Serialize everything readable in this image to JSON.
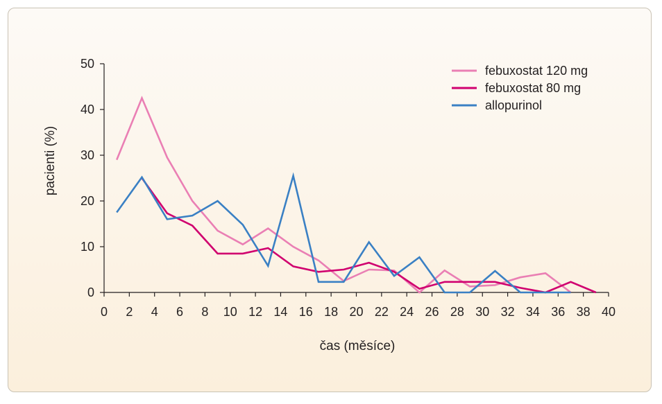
{
  "chart_data": {
    "type": "line",
    "title": "",
    "xlabel": "čas (měsíce)",
    "ylabel": "pacienti (%)",
    "xlim": [
      0,
      40
    ],
    "ylim": [
      0,
      50
    ],
    "x_ticks": [
      0,
      2,
      4,
      6,
      8,
      10,
      12,
      14,
      16,
      18,
      20,
      22,
      24,
      26,
      28,
      30,
      32,
      34,
      36,
      38,
      40
    ],
    "y_ticks": [
      0,
      10,
      20,
      30,
      40,
      50
    ],
    "grid": false,
    "legend_position": "top-right",
    "series": [
      {
        "name": "febuxostat 120 mg",
        "color": "#ea7fb4",
        "points": [
          [
            1,
            29
          ],
          [
            3,
            42.5
          ],
          [
            5,
            29.5
          ],
          [
            7,
            20
          ],
          [
            9,
            13.5
          ],
          [
            11,
            10.5
          ],
          [
            13,
            14
          ],
          [
            15,
            10
          ],
          [
            17,
            7
          ],
          [
            19,
            2.5
          ],
          [
            21,
            5
          ],
          [
            23,
            4.8
          ],
          [
            25,
            0
          ],
          [
            27,
            4.8
          ],
          [
            29,
            1.3
          ],
          [
            31,
            1.6
          ],
          [
            33,
            3.3
          ],
          [
            35,
            4.2
          ],
          [
            37,
            0
          ]
        ]
      },
      {
        "name": "febuxostat 80 mg",
        "color": "#d0006f",
        "points": [
          [
            3,
            25
          ],
          [
            5,
            17.3
          ],
          [
            7,
            14.6
          ],
          [
            9,
            8.5
          ],
          [
            11,
            8.5
          ],
          [
            13,
            9.7
          ],
          [
            15,
            5.7
          ],
          [
            17,
            4.5
          ],
          [
            19,
            5
          ],
          [
            21,
            6.5
          ],
          [
            23,
            4.5
          ],
          [
            25,
            0.8
          ],
          [
            27,
            2.3
          ],
          [
            29,
            2.3
          ],
          [
            31,
            2.3
          ],
          [
            33,
            1
          ],
          [
            35,
            0
          ],
          [
            37,
            2.3
          ],
          [
            39,
            0
          ]
        ]
      },
      {
        "name": "allopurinol",
        "color": "#3a80c4",
        "points": [
          [
            1,
            17.5
          ],
          [
            3,
            25.2
          ],
          [
            5,
            16
          ],
          [
            7,
            16.8
          ],
          [
            9,
            20
          ],
          [
            11,
            14.8
          ],
          [
            13,
            5.8
          ],
          [
            15,
            25.5
          ],
          [
            17,
            2.3
          ],
          [
            19,
            2.3
          ],
          [
            21,
            11
          ],
          [
            23,
            3.6
          ],
          [
            25,
            7.7
          ],
          [
            27,
            0
          ],
          [
            29,
            0
          ],
          [
            31,
            4.7
          ],
          [
            33,
            0
          ],
          [
            35,
            0
          ],
          [
            37,
            0
          ]
        ]
      }
    ]
  }
}
